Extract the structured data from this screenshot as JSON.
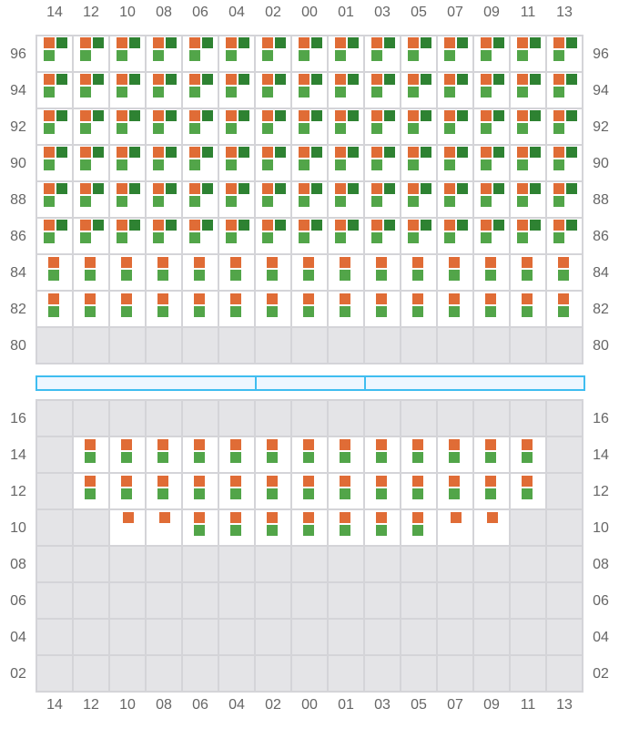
{
  "columns": [
    "14",
    "12",
    "10",
    "08",
    "06",
    "04",
    "02",
    "00",
    "01",
    "03",
    "05",
    "07",
    "09",
    "11",
    "13"
  ],
  "colors": {
    "orange": "#e06c36",
    "dark_green": "#2e8232",
    "light_green": "#52a549",
    "empty": "#e4e4e7",
    "divider": "#3fbdf0"
  },
  "cell_legend": {
    "full": "orange + dark green + light green",
    "pair": "orange + light green",
    "orange": "orange only",
    "empty": "empty"
  },
  "top_section": {
    "rows": [
      {
        "label": "96",
        "cells": "full"
      },
      {
        "label": "94",
        "cells": "full"
      },
      {
        "label": "92",
        "cells": "full"
      },
      {
        "label": "90",
        "cells": "full"
      },
      {
        "label": "88",
        "cells": "full"
      },
      {
        "label": "86",
        "cells": "full"
      },
      {
        "label": "84",
        "cells": "pair"
      },
      {
        "label": "82",
        "cells": "pair"
      },
      {
        "label": "80",
        "cells": "empty"
      }
    ]
  },
  "bottom_section": {
    "rows": [
      {
        "label": "16",
        "cells": [
          "empty",
          "empty",
          "empty",
          "empty",
          "empty",
          "empty",
          "empty",
          "empty",
          "empty",
          "empty",
          "empty",
          "empty",
          "empty",
          "empty",
          "empty"
        ]
      },
      {
        "label": "14",
        "cells": [
          "empty",
          "pair",
          "pair",
          "pair",
          "pair",
          "pair",
          "pair",
          "pair",
          "pair",
          "pair",
          "pair",
          "pair",
          "pair",
          "pair",
          "empty"
        ]
      },
      {
        "label": "12",
        "cells": [
          "empty",
          "pair",
          "pair",
          "pair",
          "pair",
          "pair",
          "pair",
          "pair",
          "pair",
          "pair",
          "pair",
          "pair",
          "pair",
          "pair",
          "empty"
        ]
      },
      {
        "label": "10",
        "cells": [
          "empty",
          "empty",
          "orange",
          "orange",
          "pair",
          "pair",
          "pair",
          "pair",
          "pair",
          "pair",
          "pair",
          "orange",
          "orange",
          "empty",
          "empty"
        ]
      },
      {
        "label": "08",
        "cells": "empty"
      },
      {
        "label": "06",
        "cells": "empty"
      },
      {
        "label": "04",
        "cells": "empty"
      },
      {
        "label": "02",
        "cells": "empty"
      }
    ]
  }
}
